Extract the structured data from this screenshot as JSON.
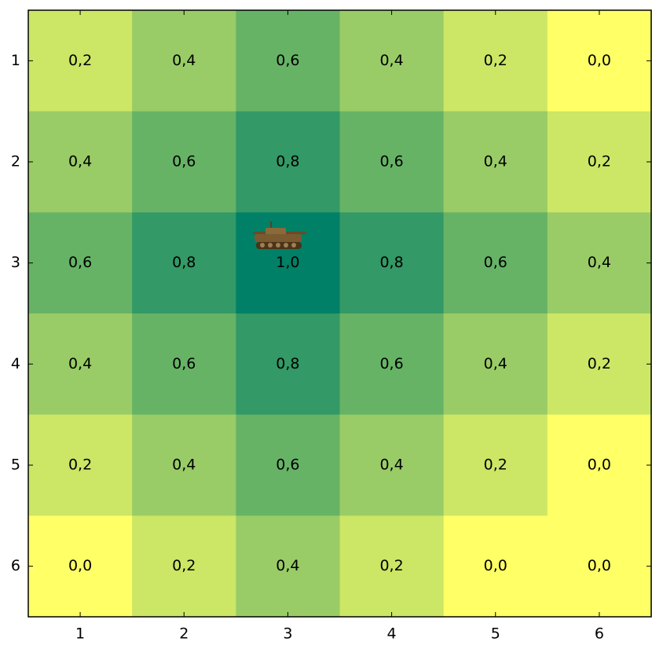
{
  "chart_data": {
    "type": "heatmap",
    "values": [
      [
        0.2,
        0.4,
        0.6,
        0.4,
        0.2,
        0.0
      ],
      [
        0.4,
        0.6,
        0.8,
        0.6,
        0.4,
        0.2
      ],
      [
        0.6,
        0.8,
        1.0,
        0.8,
        0.6,
        0.4
      ],
      [
        0.4,
        0.6,
        0.8,
        0.6,
        0.4,
        0.2
      ],
      [
        0.2,
        0.4,
        0.6,
        0.4,
        0.2,
        0.0
      ],
      [
        0.0,
        0.2,
        0.4,
        0.2,
        0.0,
        0.0
      ]
    ],
    "value_labels": [
      [
        "0,2",
        "0,4",
        "0,6",
        "0,4",
        "0,2",
        "0,0"
      ],
      [
        "0,4",
        "0,6",
        "0,8",
        "0,6",
        "0,4",
        "0,2"
      ],
      [
        "0,6",
        "0,8",
        "1,0",
        "0,8",
        "0,6",
        "0,4"
      ],
      [
        "0,4",
        "0,6",
        "0,8",
        "0,6",
        "0,4",
        "0,2"
      ],
      [
        "0,2",
        "0,4",
        "0,6",
        "0,4",
        "0,2",
        "0,0"
      ],
      [
        "0,0",
        "0,2",
        "0,4",
        "0,2",
        "0,0",
        "0,0"
      ]
    ],
    "colormap": [
      "#ffff66",
      "#008066"
    ],
    "xlim": [
      0.5,
      6.5
    ],
    "ylim": [
      0.5,
      6.5
    ],
    "xticks": [
      1,
      2,
      3,
      4,
      5,
      6
    ],
    "yticks": [
      1,
      2,
      3,
      4,
      5,
      6
    ]
  }
}
